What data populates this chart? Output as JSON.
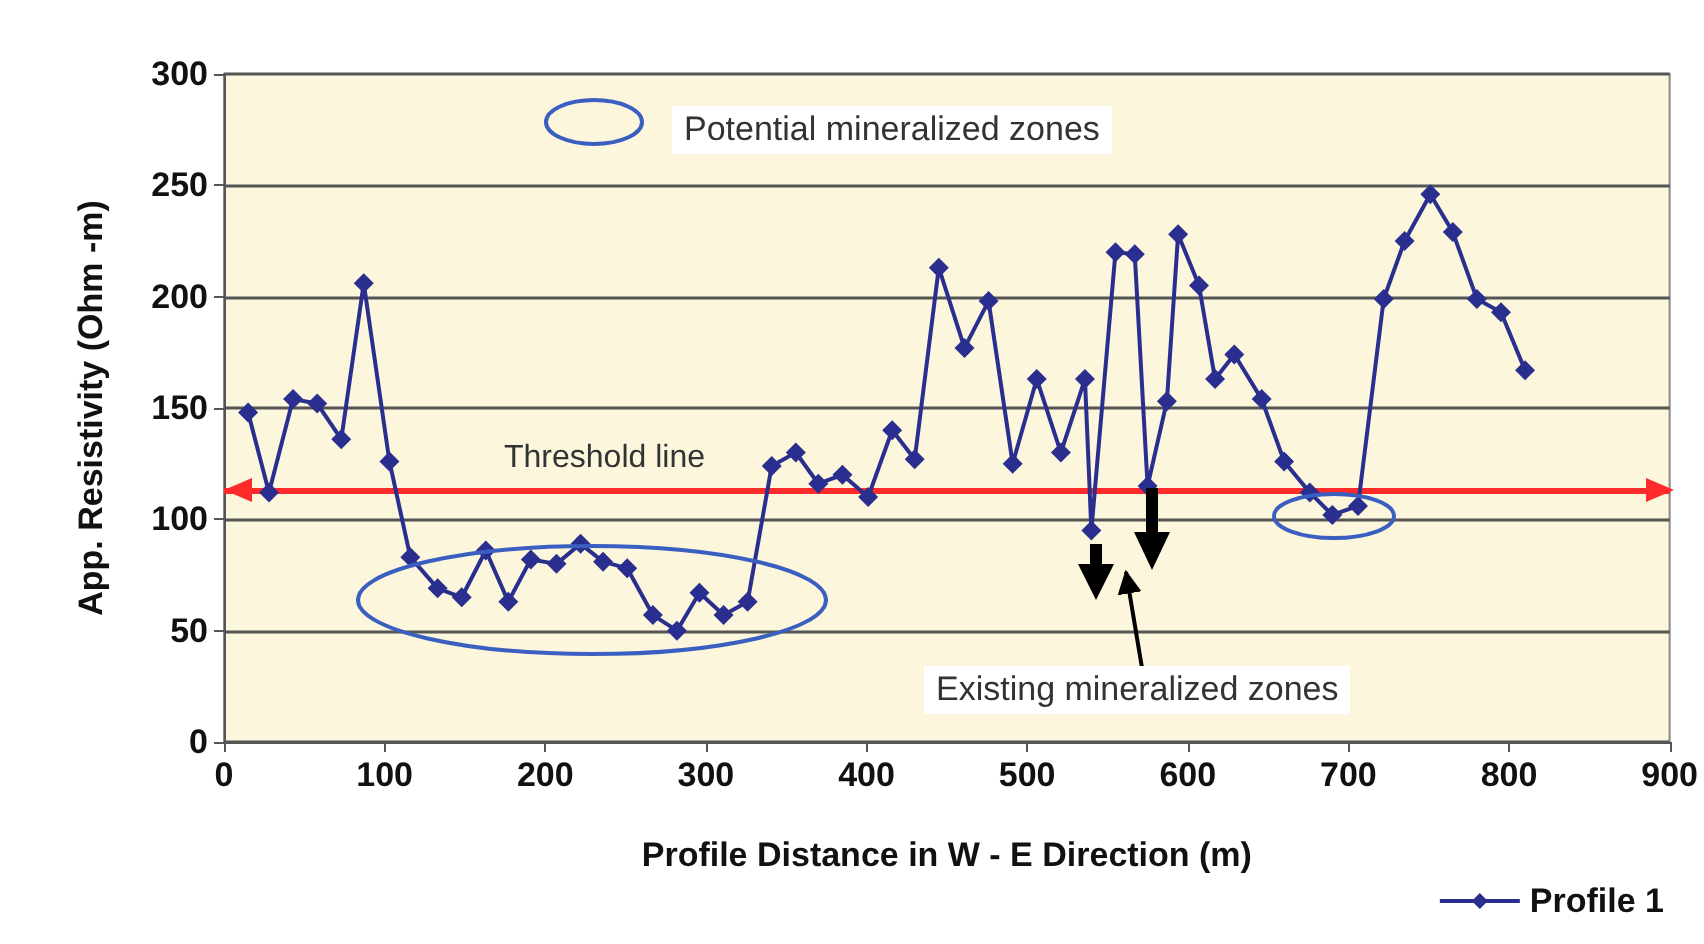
{
  "chart_data": {
    "type": "line",
    "xlabel": "Profile Distance in W - E Direction (m)",
    "ylabel": "App. Resistivity (Ohm -m)",
    "xlim": [
      0,
      900
    ],
    "xticks": [
      0,
      100,
      200,
      300,
      400,
      500,
      600,
      700,
      800,
      900
    ],
    "ylim": [
      0,
      300
    ],
    "yticks": [
      0,
      50,
      100,
      150,
      200,
      250,
      300
    ],
    "grid": "y",
    "legend": "bottom right",
    "marker": "diamond",
    "line_style": "solid",
    "series": [
      {
        "name": "Profile 1",
        "color": "#2a2f8f",
        "x": [
          15,
          28,
          43,
          58,
          73,
          87,
          103,
          116,
          133,
          148,
          163,
          177,
          191,
          207,
          222,
          236,
          251,
          267,
          282,
          296,
          311,
          326,
          341,
          356,
          370,
          385,
          401,
          416,
          430,
          445,
          461,
          476,
          491,
          506,
          521,
          536,
          540,
          555,
          567,
          575,
          587,
          594,
          607,
          617,
          629,
          646,
          660,
          676,
          690,
          706,
          722,
          735,
          751,
          765,
          780,
          795,
          810
        ],
        "values": [
          148,
          112,
          154,
          152,
          136,
          206,
          126,
          83,
          69,
          65,
          86,
          63,
          82,
          80,
          89,
          81,
          78,
          57,
          50,
          67,
          57,
          63,
          124,
          130,
          116,
          120,
          110,
          140,
          127,
          213,
          177,
          198,
          125,
          163,
          130,
          163,
          95,
          220,
          219,
          115,
          153,
          228,
          205,
          163,
          174,
          154,
          126,
          112,
          102,
          106,
          199,
          225,
          246,
          229,
          199,
          193,
          167
        ]
      }
    ],
    "ref_lines": [
      {
        "axis": "y",
        "value": 113,
        "label": "Threshold line",
        "color": "#ff2a2a"
      }
    ],
    "annotations": [
      "Potential mineralized zones",
      "Existing mineralized zones"
    ]
  }
}
